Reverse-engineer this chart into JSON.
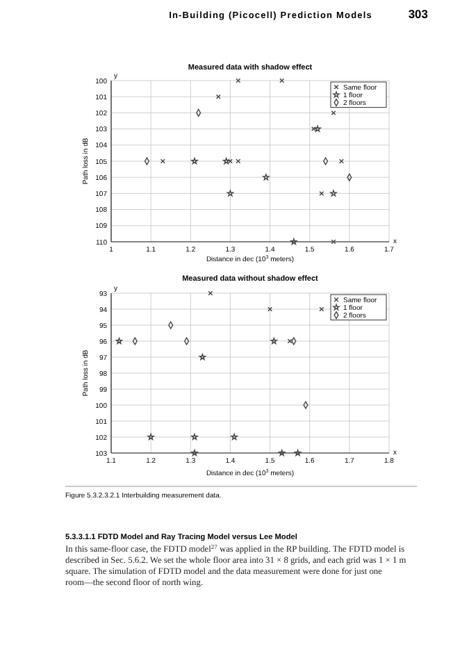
{
  "chart_data": [
    {
      "type": "scatter",
      "title": "Measured data with shadow effect",
      "xlabel": "Distance in dec (10$^{3}$ meters)",
      "ylabel": "Path loss in dB",
      "xlim": [
        1,
        1.7
      ],
      "xticks": [
        1,
        1.1,
        1.2,
        1.3,
        1.4,
        1.5,
        1.6,
        1.7
      ],
      "ylim": [
        110,
        100
      ],
      "yticks": [
        100,
        101,
        102,
        103,
        104,
        105,
        106,
        107,
        108,
        109,
        110
      ],
      "grid": true,
      "legend": "top right",
      "annotations": [
        "In-Building (Picocell) Prediction Models",
        "303",
        "y",
        "x"
      ],
      "series": [
        {
          "name": "Same floor",
          "color": "#444444",
          "marker": "cross",
          "x": [
            1.32,
            1.43,
            1.27,
            1.56,
            1.51,
            1.13,
            1.3,
            1.32,
            1.58,
            1.53,
            1.56
          ],
          "values": [
            100,
            100,
            101,
            102,
            103,
            105,
            105,
            105,
            105,
            107,
            110
          ]
        },
        {
          "name": "1 floor",
          "color": "#444444",
          "marker": "star",
          "x": [
            1.21,
            1.29,
            1.39,
            1.52,
            1.3,
            1.56,
            1.46
          ],
          "values": [
            105,
            105,
            106,
            103,
            107,
            107,
            110
          ]
        },
        {
          "name": "2 floors",
          "color": "#444444",
          "marker": "diamond",
          "x": [
            1.09,
            1.22,
            1.54,
            1.6
          ],
          "values": [
            105,
            102,
            105,
            106
          ]
        }
      ]
    },
    {
      "type": "scatter",
      "title": "Measured data without shadow effect",
      "xlabel": "Distance in dec (10$^{3}$ meters)",
      "ylabel": "Path loss in dB",
      "xlim": [
        1.1,
        1.8
      ],
      "xticks": [
        1.1,
        1.2,
        1.3,
        1.4,
        1.5,
        1.6,
        1.7,
        1.8
      ],
      "ylim": [
        103,
        93
      ],
      "yticks": [
        93,
        94,
        95,
        96,
        97,
        98,
        99,
        100,
        101,
        102,
        103
      ],
      "grid": true,
      "legend": "top right",
      "annotations": [
        "y",
        "x",
        "Figure 5.3.2.3.2.1  Interbuilding measurement data.",
        "5.3.3.1.1    FDTD Model and Ray Tracing Model versus Lee Model",
        "In this same-floor case, the FDTD model$^{27}$ was applied in the RP building. The FDTD model is described in Sec. 5.6.2. We set the whole floor area into 31 × 8 grids, and each grid was 1 × 1 m square. The simulation of FDTD model and the data measurement were done for just one room—the second floor of north wing."
      ],
      "series": [
        {
          "name": "Same floor",
          "color": "#444444",
          "marker": "cross",
          "x": [
            1.35,
            1.5,
            1.63,
            1.55
          ],
          "values": [
            93,
            94,
            94,
            96
          ]
        },
        {
          "name": "1 floor",
          "color": "#444444",
          "marker": "star",
          "x": [
            1.12,
            1.51,
            1.33,
            1.2,
            1.31,
            1.41,
            1.31,
            1.53,
            1.57
          ],
          "values": [
            96,
            96,
            97,
            102,
            102,
            102,
            103,
            103,
            103
          ]
        },
        {
          "name": "2 floors",
          "color": "#444444",
          "marker": "diamond",
          "x": [
            1.16,
            1.25,
            1.29,
            1.56,
            1.59
          ],
          "values": [
            96,
            95,
            96,
            96,
            100
          ]
        }
      ]
    }
  ]
}
